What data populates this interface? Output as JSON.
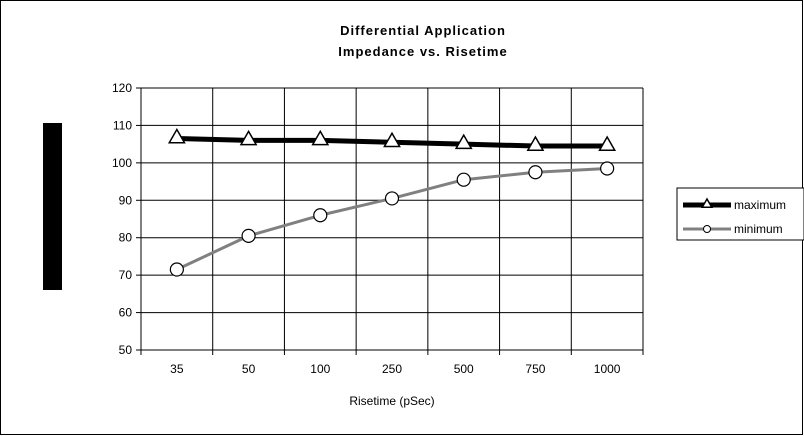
{
  "chart_data": {
    "type": "line",
    "title": "Differential Application",
    "subtitle": "Impedance vs. Risetime",
    "xlabel": "Risetime (pSec)",
    "ylabel": "",
    "categories": [
      "35",
      "50",
      "100",
      "250",
      "500",
      "750",
      "1000"
    ],
    "ylim": [
      50,
      120
    ],
    "yticks": [
      50,
      60,
      70,
      80,
      90,
      100,
      110,
      120
    ],
    "grid": true,
    "legend_position": "right",
    "series": [
      {
        "name": "maximum",
        "values": [
          106.5,
          106,
          106,
          105.5,
          105,
          104.5,
          104.5
        ],
        "color": "#000000",
        "marker": "triangle"
      },
      {
        "name": "minimum",
        "values": [
          71.5,
          80.5,
          86,
          90.5,
          95.5,
          97.5,
          98.5
        ],
        "color": "#808080",
        "marker": "circle"
      }
    ]
  }
}
